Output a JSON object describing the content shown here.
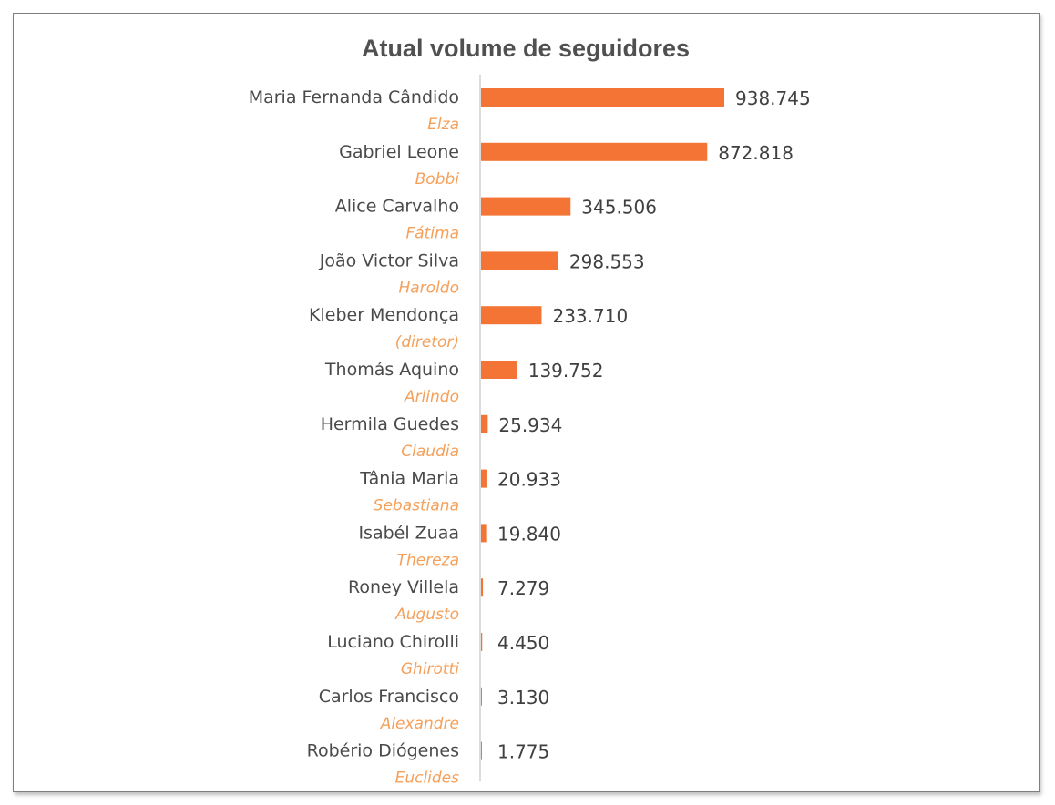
{
  "chart_data": {
    "type": "bar",
    "orientation": "horizontal",
    "title": "Atual volume de seguidores",
    "categories": [
      {
        "name": "Maria Fernanda Cândido",
        "role": "Elza"
      },
      {
        "name": "Gabriel Leone",
        "role": "Bobbi"
      },
      {
        "name": "Alice Carvalho",
        "role": "Fátima"
      },
      {
        "name": "João Victor Silva",
        "role": "Haroldo"
      },
      {
        "name": "Kleber Mendonça",
        "role": "(diretor)"
      },
      {
        "name": "Thomás Aquino",
        "role": "Arlindo"
      },
      {
        "name": "Hermila Guedes",
        "role": "Claudia"
      },
      {
        "name": "Tânia Maria",
        "role": "Sebastiana"
      },
      {
        "name": "Isabél Zuaa",
        "role": "Thereza"
      },
      {
        "name": "Roney Villela",
        "role": "Augusto"
      },
      {
        "name": "Luciano Chirolli",
        "role": "Ghirotti"
      },
      {
        "name": "Carlos Francisco",
        "role": "Alexandre"
      },
      {
        "name": "Robério Diógenes",
        "role": "Euclides"
      }
    ],
    "values": [
      938745,
      872818,
      345506,
      298553,
      233710,
      139752,
      25934,
      20933,
      19840,
      7279,
      4450,
      3130,
      1775
    ],
    "value_labels": [
      "938.745",
      "872.818",
      "345.506",
      "298.553",
      "233.710",
      "139.752",
      "25.934",
      "20.933",
      "19.840",
      "7.279",
      "4.450",
      "3.130",
      "1.775"
    ],
    "bar_color": "#f37435",
    "role_color": "#f5a05a",
    "grid": false,
    "legend": "none"
  }
}
